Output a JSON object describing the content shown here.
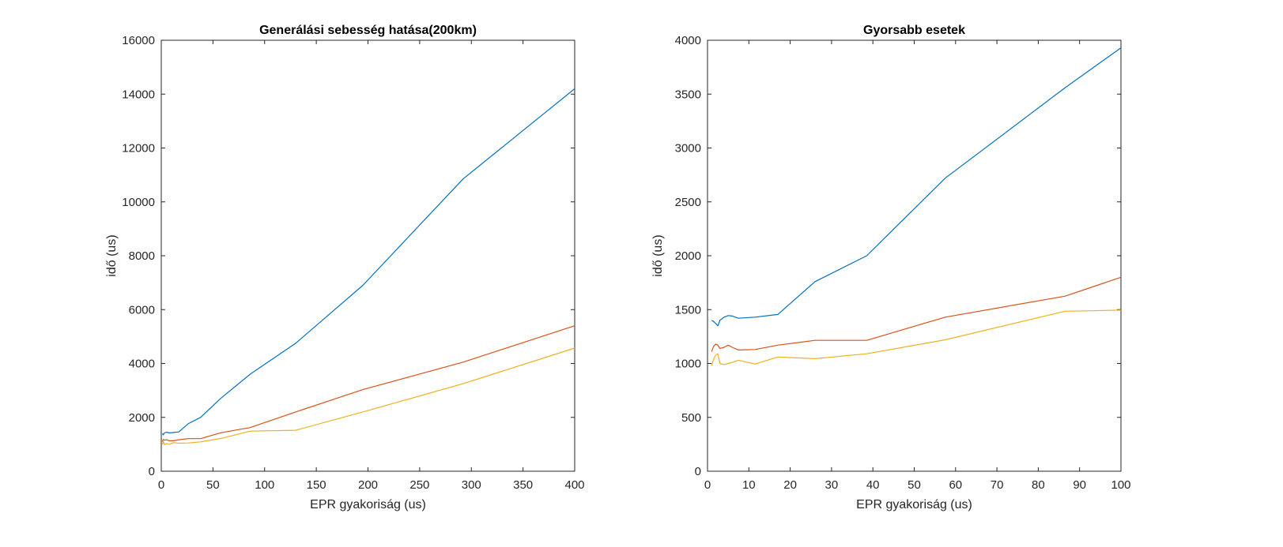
{
  "chart_data": [
    {
      "type": "line",
      "title": "Generálási sebesség hatása(200km)",
      "xlabel": "EPR gyakoriság (us)",
      "ylabel": "idő (us)",
      "xlim": [
        0,
        400
      ],
      "ylim": [
        0,
        16000
      ],
      "xticks": [
        "0",
        "50",
        "100",
        "150",
        "200",
        "250",
        "300",
        "350",
        "400"
      ],
      "yticks": [
        "0",
        "2000",
        "4000",
        "6000",
        "8000",
        "10000",
        "12000",
        "14000",
        "16000"
      ],
      "grid": false,
      "series": [
        {
          "color": "#0072BD",
          "x": [
            1,
            2,
            3,
            5,
            8,
            12,
            17,
            26,
            38,
            58,
            86,
            130,
            195,
            292,
            400
          ],
          "y": [
            1400,
            1350,
            1420,
            1450,
            1420,
            1440,
            1460,
            1760,
            2000,
            2720,
            3600,
            4750,
            6900,
            10850,
            14200
          ]
        },
        {
          "color": "#D95319",
          "x": [
            1,
            2,
            3,
            5,
            8,
            12,
            17,
            26,
            38,
            58,
            86,
            130,
            195,
            292,
            400
          ],
          "y": [
            1100,
            1180,
            1150,
            1170,
            1130,
            1130,
            1170,
            1210,
            1210,
            1430,
            1620,
            2200,
            3030,
            4050,
            5400
          ]
        },
        {
          "color": "#EDB120",
          "x": [
            1,
            2,
            3,
            5,
            8,
            12,
            17,
            26,
            38,
            58,
            86,
            130,
            195,
            292,
            400
          ],
          "y": [
            1000,
            1100,
            990,
            1030,
            1000,
            1060,
            1040,
            1050,
            1090,
            1220,
            1490,
            1520,
            2200,
            3250,
            4570
          ]
        }
      ]
    },
    {
      "type": "line",
      "title": "Gyorsabb esetek",
      "xlabel": "EPR gyakoriság (us)",
      "ylabel": "idő (us)",
      "xlim": [
        0,
        100
      ],
      "ylim": [
        0,
        4000
      ],
      "xticks": [
        "0",
        "10",
        "20",
        "30",
        "40",
        "50",
        "60",
        "70",
        "80",
        "90",
        "100"
      ],
      "yticks": [
        "0",
        "500",
        "1000",
        "1500",
        "2000",
        "2500",
        "3000",
        "3500",
        "4000"
      ],
      "grid": false,
      "series": [
        {
          "color": "#0072BD",
          "x": [
            1,
            1.5,
            2,
            2.5,
            3,
            4,
            5,
            6,
            7.5,
            11.5,
            17,
            26,
            38.5,
            57.5,
            86.5,
            100
          ],
          "y": [
            1400,
            1390,
            1370,
            1350,
            1400,
            1430,
            1445,
            1440,
            1420,
            1430,
            1455,
            1760,
            2000,
            2720,
            3560,
            3930
          ]
        },
        {
          "color": "#D95319",
          "x": [
            1,
            1.5,
            2,
            2.5,
            3,
            4,
            5,
            6,
            7.5,
            11.5,
            17,
            26,
            38.5,
            57.5,
            86.5,
            100
          ],
          "y": [
            1110,
            1160,
            1180,
            1170,
            1140,
            1150,
            1170,
            1150,
            1125,
            1130,
            1170,
            1215,
            1215,
            1430,
            1625,
            1800
          ]
        },
        {
          "color": "#EDB120",
          "x": [
            1,
            1.5,
            2,
            2.5,
            3,
            4,
            5,
            6,
            7.5,
            11.5,
            17,
            26,
            38.5,
            57.5,
            86.5,
            100
          ],
          "y": [
            980,
            1040,
            1080,
            1090,
            1000,
            990,
            1000,
            1010,
            1030,
            995,
            1060,
            1045,
            1090,
            1220,
            1485,
            1495
          ]
        }
      ]
    }
  ]
}
